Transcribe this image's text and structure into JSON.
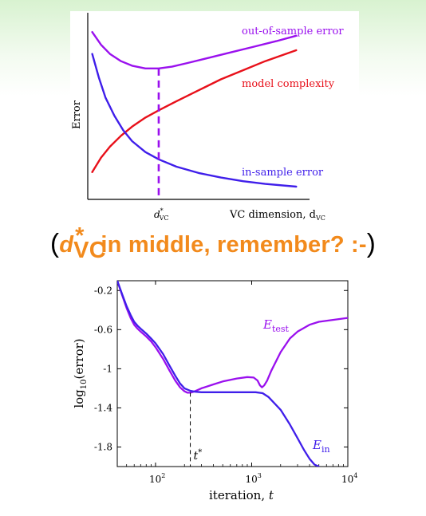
{
  "chart_data": [
    {
      "type": "line",
      "ylabel": "Error",
      "xlabel": "VC dimension, d",
      "xlabel_sub": "VC",
      "annotation_label": "d",
      "annotation_sup": "*",
      "annotation_sub": "VC",
      "xlim": [
        0,
        1
      ],
      "ylim": [
        0,
        1
      ],
      "annotation_x": 0.32,
      "series": [
        {
          "name": "out-of-sample error",
          "color": "#9a10ee",
          "x": [
            0.02,
            0.06,
            0.1,
            0.15,
            0.2,
            0.26,
            0.32,
            0.38,
            0.45,
            0.55,
            0.65,
            0.75,
            0.85,
            0.94
          ],
          "y": [
            0.92,
            0.85,
            0.8,
            0.76,
            0.735,
            0.72,
            0.72,
            0.73,
            0.75,
            0.78,
            0.81,
            0.84,
            0.87,
            0.9
          ]
        },
        {
          "name": "model complexity",
          "color": "#e8101a",
          "x": [
            0.02,
            0.06,
            0.1,
            0.15,
            0.2,
            0.26,
            0.32,
            0.4,
            0.5,
            0.6,
            0.7,
            0.8,
            0.94
          ],
          "y": [
            0.15,
            0.23,
            0.29,
            0.35,
            0.4,
            0.45,
            0.49,
            0.54,
            0.6,
            0.66,
            0.71,
            0.76,
            0.82
          ]
        },
        {
          "name": "in-sample error",
          "color": "#3f1eea",
          "x": [
            0.02,
            0.05,
            0.08,
            0.12,
            0.16,
            0.2,
            0.26,
            0.32,
            0.4,
            0.5,
            0.6,
            0.7,
            0.8,
            0.94
          ],
          "y": [
            0.8,
            0.67,
            0.56,
            0.46,
            0.38,
            0.32,
            0.26,
            0.22,
            0.18,
            0.145,
            0.12,
            0.1,
            0.085,
            0.07
          ]
        }
      ]
    },
    {
      "type": "line",
      "xscale": "log",
      "xlabel": "iteration, ",
      "xlabel_var": "t",
      "ylabel": "log",
      "ylabel_sub": "10",
      "ylabel_rest": "(error)",
      "xlim": [
        40,
        10000
      ],
      "ylim": [
        -2.0,
        -0.1
      ],
      "xticks": [
        100,
        1000,
        10000
      ],
      "xtick_base": "10",
      "xtick_exps": [
        "2",
        "3",
        "4"
      ],
      "yticks": [
        -0.2,
        -0.6,
        -1,
        -1.4,
        -1.8
      ],
      "ytick_labels": [
        "-0.2",
        "-0.6",
        "-1",
        "-1.4",
        "-1.8"
      ],
      "annotation_label": "t",
      "annotation_sup": "*",
      "annotation_x": 230,
      "series": [
        {
          "name": "E",
          "name_sub": "test",
          "color": "#9a10ee",
          "x": [
            40,
            45,
            50,
            55,
            60,
            65,
            70,
            80,
            90,
            100,
            120,
            140,
            160,
            180,
            200,
            215,
            230,
            250,
            300,
            400,
            500,
            700,
            900,
            1050,
            1150,
            1220,
            1280,
            1350,
            1450,
            1600,
            2000,
            2500,
            3000,
            4000,
            5000,
            7000,
            10000
          ],
          "y": [
            -0.1,
            -0.25,
            -0.38,
            -0.48,
            -0.55,
            -0.59,
            -0.62,
            -0.67,
            -0.72,
            -0.78,
            -0.9,
            -1.02,
            -1.12,
            -1.19,
            -1.23,
            -1.245,
            -1.245,
            -1.235,
            -1.2,
            -1.16,
            -1.13,
            -1.1,
            -1.085,
            -1.09,
            -1.12,
            -1.17,
            -1.19,
            -1.17,
            -1.12,
            -1.02,
            -0.83,
            -0.69,
            -0.62,
            -0.55,
            -0.52,
            -0.5,
            -0.48
          ]
        },
        {
          "name": "E",
          "name_sub": "in",
          "color": "#3f1eea",
          "x": [
            40,
            45,
            50,
            55,
            60,
            65,
            70,
            80,
            90,
            100,
            120,
            140,
            160,
            180,
            200,
            230,
            260,
            300,
            400,
            500,
            700,
            900,
            1100,
            1300,
            1500,
            2000,
            2500,
            3000,
            3500,
            4000,
            4500,
            5000
          ],
          "y": [
            -0.1,
            -0.24,
            -0.36,
            -0.45,
            -0.52,
            -0.56,
            -0.59,
            -0.64,
            -0.69,
            -0.74,
            -0.85,
            -0.97,
            -1.07,
            -1.15,
            -1.2,
            -1.225,
            -1.235,
            -1.24,
            -1.24,
            -1.24,
            -1.24,
            -1.24,
            -1.24,
            -1.25,
            -1.29,
            -1.42,
            -1.57,
            -1.71,
            -1.83,
            -1.92,
            -1.98,
            -2.0
          ]
        }
      ]
    }
  ],
  "caption": {
    "open_paren": "(",
    "var": "d",
    "var_sup": "*",
    "var_sub": "VC",
    "text": " in middle, remember? :-",
    "close_paren": ")"
  }
}
